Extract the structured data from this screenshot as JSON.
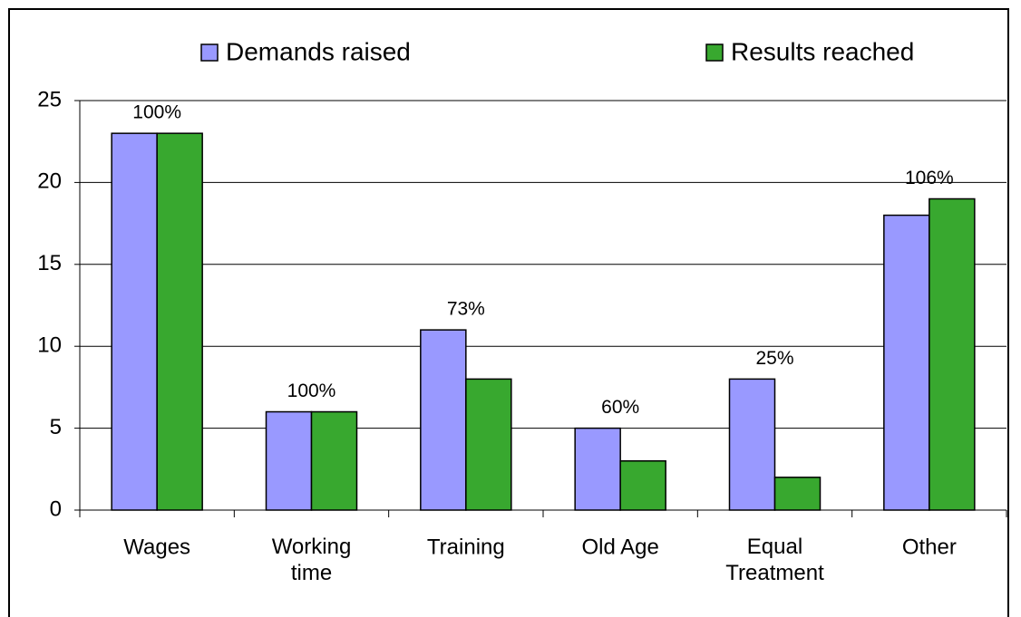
{
  "chart_data": {
    "type": "bar",
    "categories": [
      "Wages",
      "Working\ntime",
      "Training",
      "Old Age",
      "Equal\nTreatment",
      "Other"
    ],
    "series": [
      {
        "name": "Demands raised",
        "color": "#9999ff",
        "values": [
          23,
          6,
          11,
          5,
          8,
          18
        ]
      },
      {
        "name": "Results reached",
        "color": "#38a82f",
        "values": [
          23,
          6,
          8,
          3,
          2,
          19
        ]
      }
    ],
    "annotations": [
      "100%",
      "100%",
      "73%",
      "60%",
      "25%",
      "106%"
    ],
    "ylim": [
      0,
      25
    ],
    "yticks": [
      0,
      5,
      10,
      15,
      20,
      25
    ],
    "grid": true
  }
}
